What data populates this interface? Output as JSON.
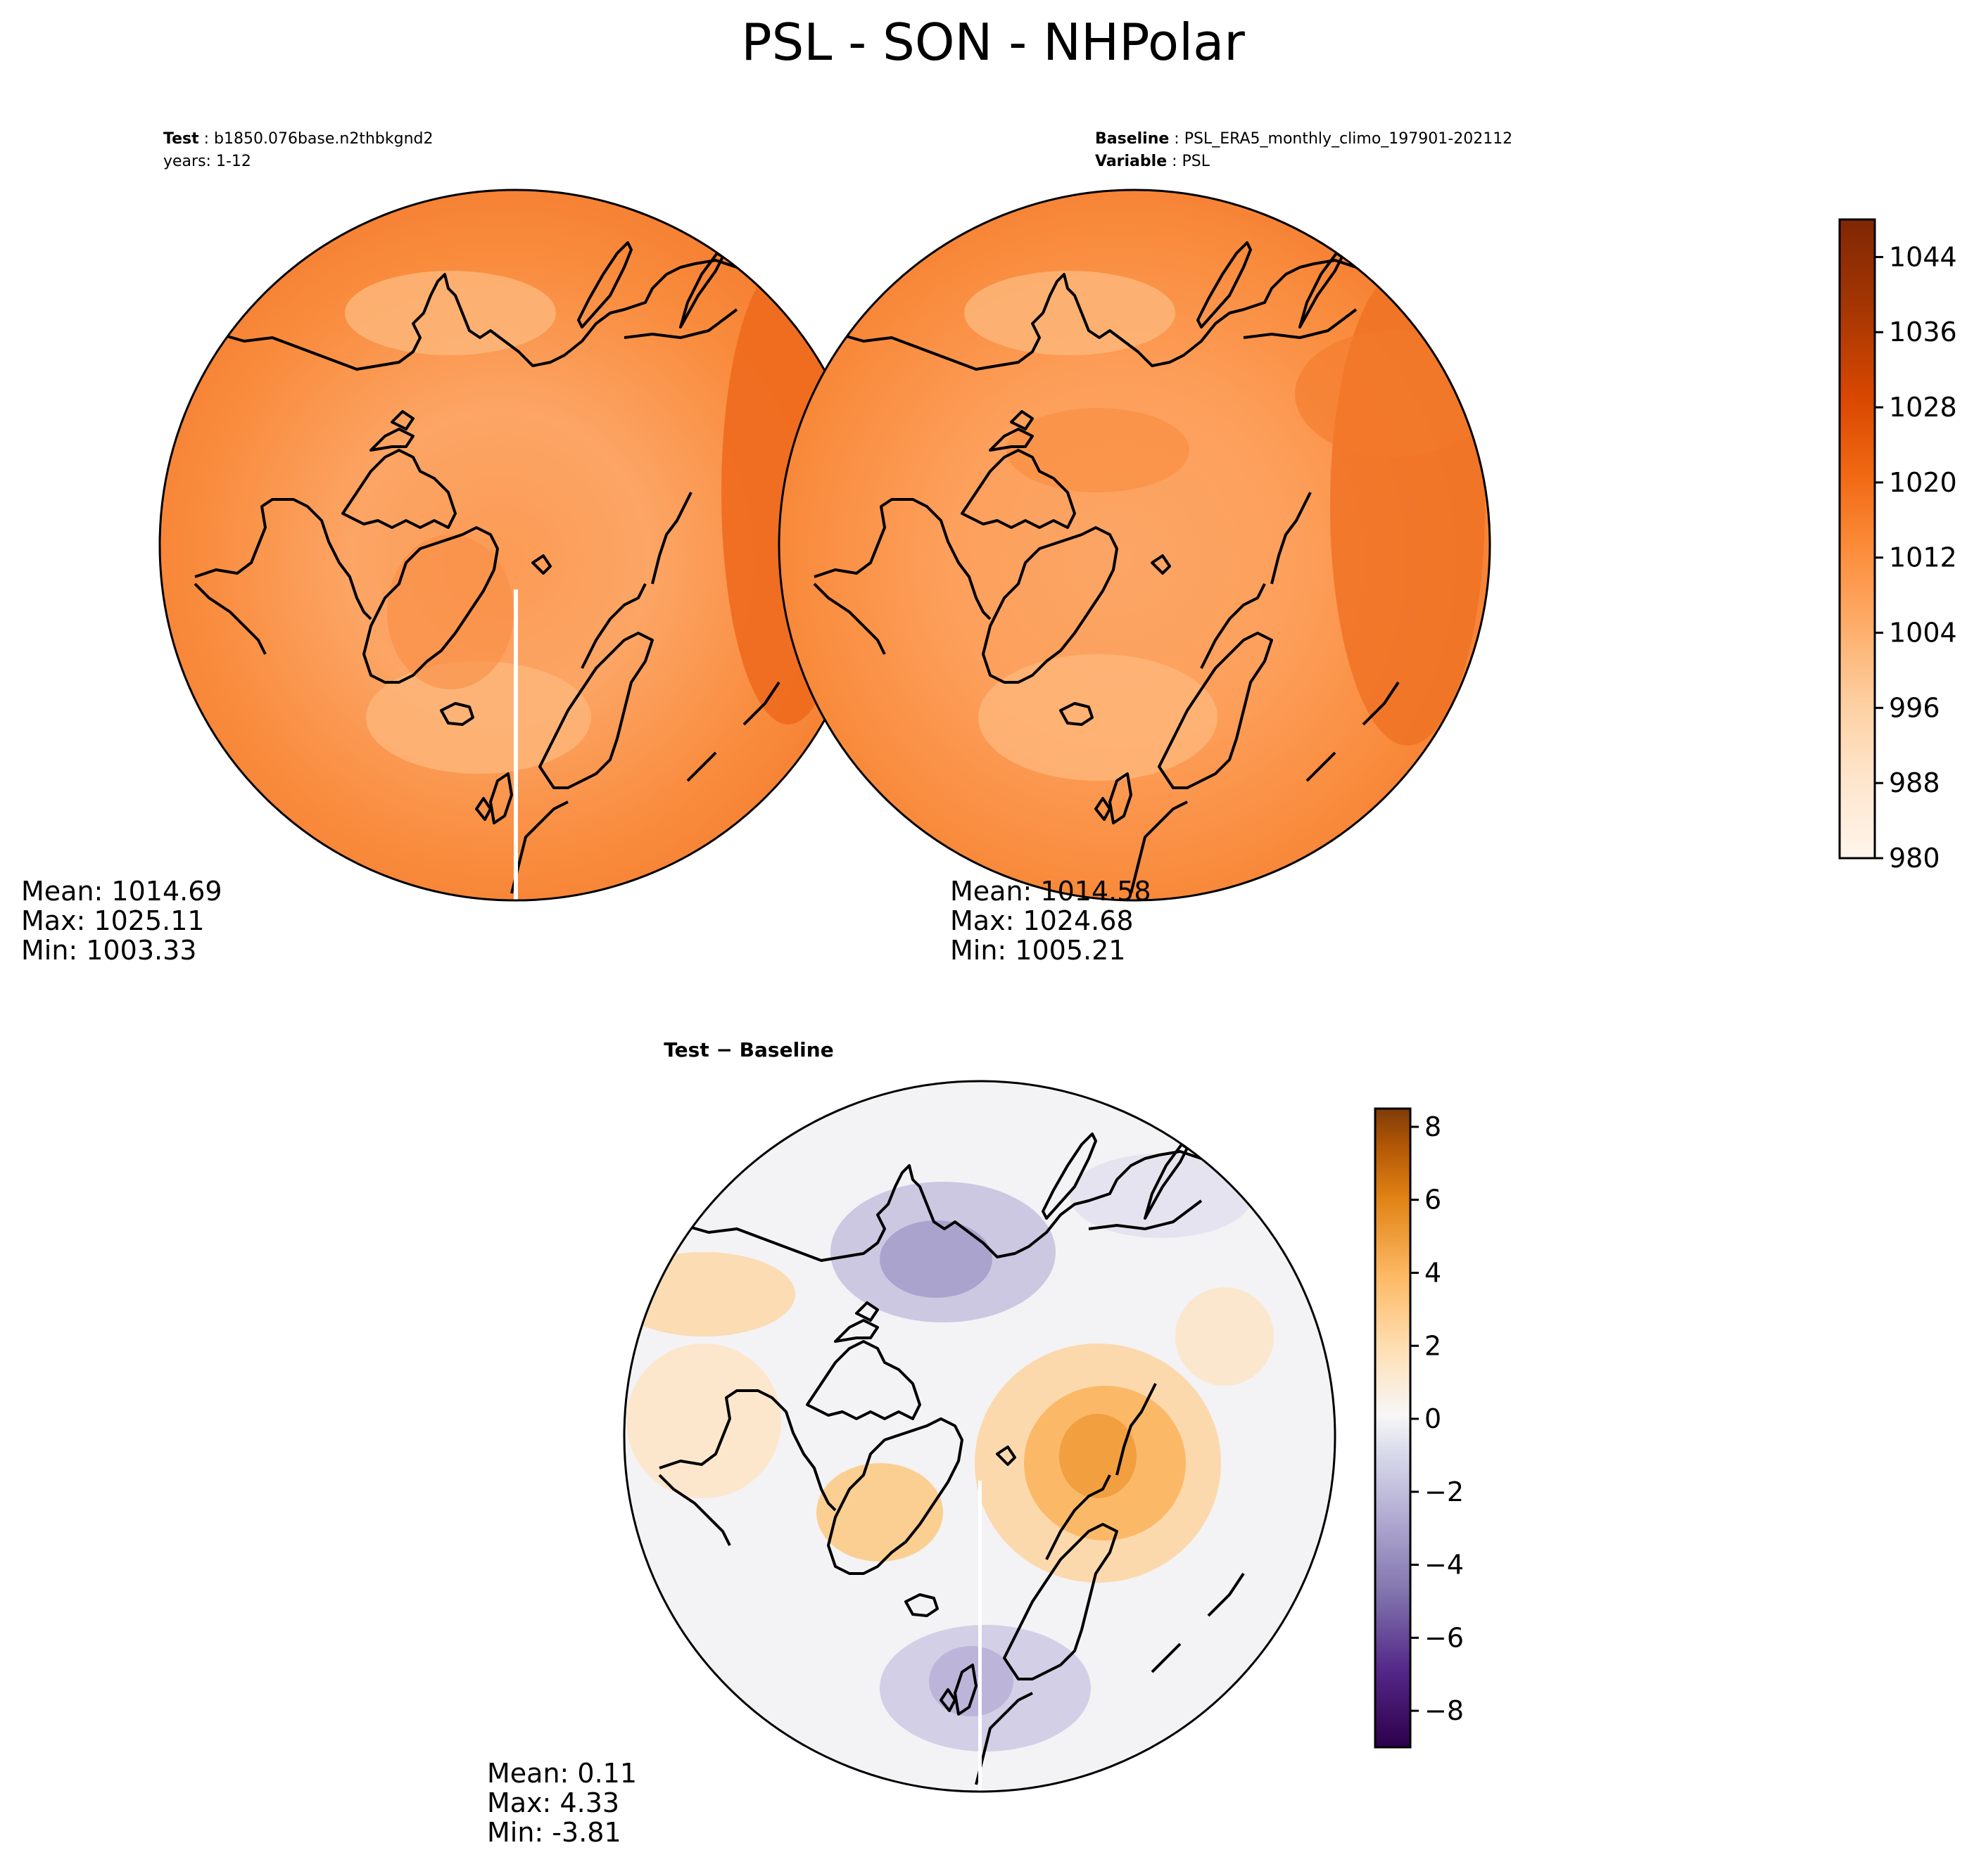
{
  "chart_data": {
    "type": "heatmap",
    "title": "PSL - SON - NHPolar",
    "panels": [
      {
        "id": "test",
        "label_key": "Test",
        "label_value": "b1850.076base.n2thbkgnd2",
        "second_line": "years: 1-12",
        "stats": {
          "mean": "Mean: 1014.69",
          "max": "Max: 1025.11",
          "min": "Min: 1003.33"
        }
      },
      {
        "id": "baseline",
        "label_key": "Baseline",
        "label_value": "PSL_ERA5_monthly_climo_197901-202112",
        "second_key": "Variable",
        "second_value": "PSL",
        "stats": {
          "mean": "Mean: 1014.58",
          "max": "Max: 1024.68",
          "min": "Min: 1005.21"
        }
      },
      {
        "id": "difference",
        "title": "Test − Baseline",
        "stats": {
          "mean": "Mean:  0.11",
          "max": "Max:  4.33",
          "min": "Min: -3.81"
        }
      }
    ],
    "colorbar_absolute": {
      "colormap": "Oranges",
      "range": [
        980,
        1048
      ],
      "ticks": [
        980,
        988,
        996,
        1004,
        1012,
        1020,
        1028,
        1036,
        1044
      ],
      "colors": [
        "#fff5eb",
        "#fee6ce",
        "#fdd0a2",
        "#fdae6b",
        "#fd8d3c",
        "#f16913",
        "#d94801",
        "#a63603",
        "#7f2704"
      ]
    },
    "colorbar_difference": {
      "colormap": "PuOr_r",
      "range": [
        -9,
        8.5
      ],
      "ticks": [
        -8,
        -6,
        -4,
        -2,
        0,
        2,
        4,
        6,
        8
      ],
      "tick_labels": [
        "−8",
        "−6",
        "−4",
        "−2",
        "0",
        "2",
        "4",
        "6",
        "8"
      ],
      "colors": [
        "#2d004b",
        "#542788",
        "#8073ac",
        "#b2abd2",
        "#d8daeb",
        "#f7f7f7",
        "#fee0b6",
        "#fdb863",
        "#e08214",
        "#b35806",
        "#7f3b08"
      ]
    }
  }
}
